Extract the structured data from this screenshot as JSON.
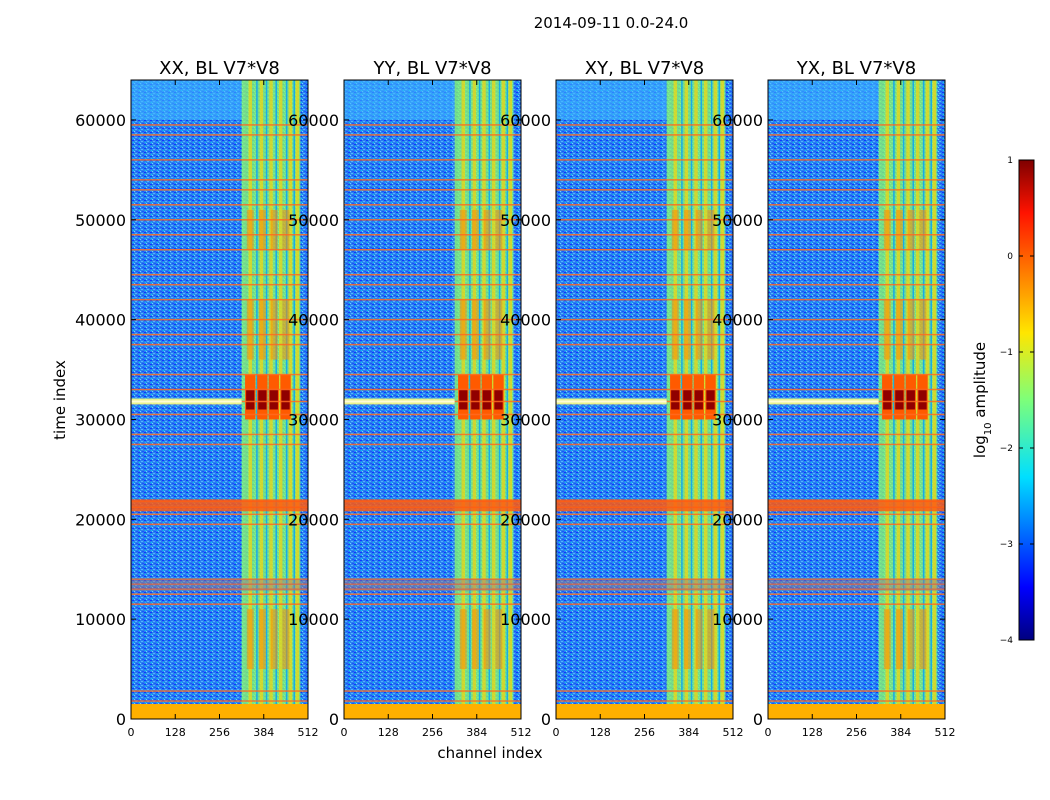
{
  "chart_data": {
    "type": "heatmap",
    "title": "2014-09-11 0.0-24.0",
    "xlabel": "channel index",
    "ylabel": "time index",
    "xlim": [
      0,
      512
    ],
    "ylim": [
      0,
      64000
    ],
    "xticks": [
      "0",
      "128",
      "256",
      "384",
      "512"
    ],
    "yticks": [
      "0",
      "10000",
      "20000",
      "30000",
      "40000",
      "50000",
      "60000"
    ],
    "xtick_values": [
      0,
      128,
      256,
      384,
      512
    ],
    "ytick_values": [
      0,
      10000,
      20000,
      30000,
      40000,
      50000,
      60000
    ],
    "panels": [
      {
        "title": "XX, BL V7*V8",
        "strong_band": [
          320,
          490
        ],
        "background_level": -2.6
      },
      {
        "title": "YY, BL V7*V8",
        "strong_band": [
          320,
          490
        ],
        "background_level": -2.5
      },
      {
        "title": "XY, BL V7*V8",
        "strong_band": [
          320,
          490
        ],
        "background_level": -2.6
      },
      {
        "title": "YX, BL V7*V8",
        "strong_band": [
          320,
          490
        ],
        "background_level": -2.7
      }
    ],
    "flagged_rows": [
      1800,
      2800,
      11500,
      12500,
      13000,
      13500,
      14000,
      19500,
      20500,
      21200,
      21800,
      27500,
      28500,
      30500,
      31800,
      33000,
      34500,
      37500,
      38500,
      40000,
      42000,
      43500,
      44500,
      47000,
      48500,
      50000,
      51500,
      53000,
      54000,
      56000,
      58500,
      59500
    ],
    "bright_rows": [
      31800
    ],
    "colorbar": {
      "label": "log10 amplitude",
      "label_main": "log",
      "label_sub": "10",
      "label_rest": " amplitude",
      "range": [
        -4,
        1
      ],
      "ticks": [
        "1",
        "0",
        "−1",
        "−2",
        "−3",
        "−4"
      ],
      "tick_values": [
        1,
        0,
        -1,
        -2,
        -3,
        -4
      ],
      "colormap": "jet"
    }
  }
}
